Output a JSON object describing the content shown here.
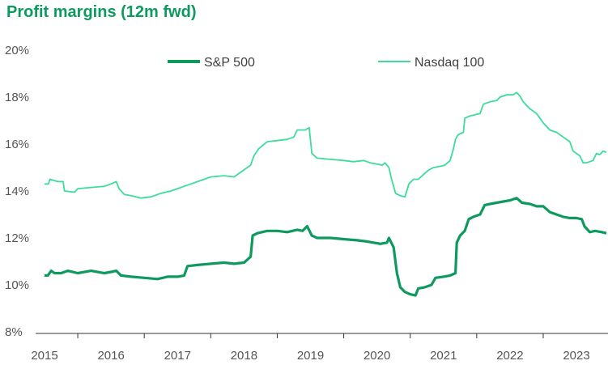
{
  "chart_data": {
    "type": "line",
    "title": "Profit margins (12m fwd)",
    "xlabel": "",
    "ylabel": "",
    "xlim": [
      2015.0,
      2023.45
    ],
    "ylim": [
      8,
      20
    ],
    "y_ticks": [
      8,
      10,
      12,
      14,
      16,
      18,
      20
    ],
    "y_tick_labels": [
      "8%",
      "10%",
      "12%",
      "14%",
      "16%",
      "18%",
      "20%"
    ],
    "x_ticks": [
      2015,
      2016,
      2017,
      2018,
      2019,
      2020,
      2021,
      2022,
      2023
    ],
    "x_tick_labels": [
      "2015",
      "2016",
      "2017",
      "2018",
      "2019",
      "2020",
      "2021",
      "2022",
      "2023"
    ],
    "grid": false,
    "legend_position": "top-center",
    "series": [
      {
        "name": "S&P 500",
        "color": "#0e9a5e",
        "points": [
          [
            2015.0,
            10.4
          ],
          [
            2015.05,
            10.4
          ],
          [
            2015.1,
            10.6
          ],
          [
            2015.15,
            10.5
          ],
          [
            2015.25,
            10.5
          ],
          [
            2015.35,
            10.6
          ],
          [
            2015.5,
            10.5
          ],
          [
            2015.7,
            10.6
          ],
          [
            2015.9,
            10.5
          ],
          [
            2016.0,
            10.55
          ],
          [
            2016.08,
            10.6
          ],
          [
            2016.15,
            10.4
          ],
          [
            2016.3,
            10.35
          ],
          [
            2016.5,
            10.3
          ],
          [
            2016.7,
            10.25
          ],
          [
            2016.85,
            10.35
          ],
          [
            2017.0,
            10.35
          ],
          [
            2017.1,
            10.4
          ],
          [
            2017.15,
            10.8
          ],
          [
            2017.3,
            10.85
          ],
          [
            2017.5,
            10.9
          ],
          [
            2017.7,
            10.95
          ],
          [
            2017.85,
            10.9
          ],
          [
            2018.0,
            10.95
          ],
          [
            2018.1,
            11.2
          ],
          [
            2018.13,
            12.1
          ],
          [
            2018.2,
            12.2
          ],
          [
            2018.35,
            12.3
          ],
          [
            2018.5,
            12.3
          ],
          [
            2018.65,
            12.25
          ],
          [
            2018.8,
            12.35
          ],
          [
            2018.88,
            12.3
          ],
          [
            2018.95,
            12.5
          ],
          [
            2019.02,
            12.1
          ],
          [
            2019.1,
            12.0
          ],
          [
            2019.3,
            12.0
          ],
          [
            2019.5,
            11.95
          ],
          [
            2019.7,
            11.9
          ],
          [
            2019.85,
            11.85
          ],
          [
            2019.95,
            11.8
          ],
          [
            2020.05,
            11.75
          ],
          [
            2020.15,
            11.8
          ],
          [
            2020.18,
            12.0
          ],
          [
            2020.25,
            11.6
          ],
          [
            2020.3,
            10.5
          ],
          [
            2020.35,
            9.9
          ],
          [
            2020.42,
            9.7
          ],
          [
            2020.5,
            9.6
          ],
          [
            2020.58,
            9.55
          ],
          [
            2020.62,
            9.85
          ],
          [
            2020.72,
            9.9
          ],
          [
            2020.82,
            10.0
          ],
          [
            2020.88,
            10.3
          ],
          [
            2021.0,
            10.35
          ],
          [
            2021.1,
            10.4
          ],
          [
            2021.18,
            10.5
          ],
          [
            2021.2,
            11.8
          ],
          [
            2021.25,
            12.1
          ],
          [
            2021.32,
            12.3
          ],
          [
            2021.38,
            12.8
          ],
          [
            2021.45,
            12.9
          ],
          [
            2021.55,
            13.0
          ],
          [
            2021.62,
            13.4
          ],
          [
            2021.7,
            13.45
          ],
          [
            2021.8,
            13.5
          ],
          [
            2021.9,
            13.55
          ],
          [
            2022.0,
            13.6
          ],
          [
            2022.1,
            13.7
          ],
          [
            2022.18,
            13.5
          ],
          [
            2022.3,
            13.45
          ],
          [
            2022.4,
            13.35
          ],
          [
            2022.5,
            13.35
          ],
          [
            2022.6,
            13.1
          ],
          [
            2022.7,
            13.0
          ],
          [
            2022.8,
            12.9
          ],
          [
            2022.9,
            12.85
          ],
          [
            2023.0,
            12.85
          ],
          [
            2023.08,
            12.8
          ],
          [
            2023.12,
            12.5
          ],
          [
            2023.2,
            12.25
          ],
          [
            2023.28,
            12.3
          ],
          [
            2023.38,
            12.25
          ],
          [
            2023.45,
            12.2
          ]
        ]
      },
      {
        "name": "Nasdaq 100",
        "color": "#3ddc9c",
        "points": [
          [
            2015.0,
            14.3
          ],
          [
            2015.06,
            14.3
          ],
          [
            2015.08,
            14.5
          ],
          [
            2015.2,
            14.4
          ],
          [
            2015.28,
            14.4
          ],
          [
            2015.3,
            14.0
          ],
          [
            2015.45,
            13.95
          ],
          [
            2015.5,
            14.1
          ],
          [
            2015.7,
            14.15
          ],
          [
            2015.9,
            14.2
          ],
          [
            2016.0,
            14.3
          ],
          [
            2016.08,
            14.4
          ],
          [
            2016.12,
            14.1
          ],
          [
            2016.2,
            13.85
          ],
          [
            2016.3,
            13.8
          ],
          [
            2016.45,
            13.7
          ],
          [
            2016.6,
            13.75
          ],
          [
            2016.75,
            13.9
          ],
          [
            2016.9,
            14.0
          ],
          [
            2017.0,
            14.1
          ],
          [
            2017.1,
            14.2
          ],
          [
            2017.2,
            14.3
          ],
          [
            2017.35,
            14.45
          ],
          [
            2017.5,
            14.6
          ],
          [
            2017.7,
            14.65
          ],
          [
            2017.85,
            14.6
          ],
          [
            2018.0,
            14.9
          ],
          [
            2018.1,
            15.1
          ],
          [
            2018.15,
            15.5
          ],
          [
            2018.22,
            15.8
          ],
          [
            2018.35,
            16.1
          ],
          [
            2018.5,
            16.15
          ],
          [
            2018.65,
            16.2
          ],
          [
            2018.75,
            16.3
          ],
          [
            2018.8,
            16.6
          ],
          [
            2018.92,
            16.6
          ],
          [
            2018.98,
            16.7
          ],
          [
            2019.02,
            15.6
          ],
          [
            2019.1,
            15.4
          ],
          [
            2019.3,
            15.35
          ],
          [
            2019.5,
            15.3
          ],
          [
            2019.65,
            15.25
          ],
          [
            2019.8,
            15.3
          ],
          [
            2019.9,
            15.2
          ],
          [
            2020.0,
            15.15
          ],
          [
            2020.08,
            15.1
          ],
          [
            2020.12,
            15.2
          ],
          [
            2020.18,
            15.0
          ],
          [
            2020.22,
            14.5
          ],
          [
            2020.28,
            13.9
          ],
          [
            2020.35,
            13.8
          ],
          [
            2020.42,
            13.75
          ],
          [
            2020.48,
            14.3
          ],
          [
            2020.55,
            14.5
          ],
          [
            2020.62,
            14.5
          ],
          [
            2020.7,
            14.7
          ],
          [
            2020.78,
            14.9
          ],
          [
            2020.85,
            15.0
          ],
          [
            2020.95,
            15.05
          ],
          [
            2021.02,
            15.1
          ],
          [
            2021.1,
            15.3
          ],
          [
            2021.15,
            15.8
          ],
          [
            2021.18,
            16.2
          ],
          [
            2021.22,
            16.4
          ],
          [
            2021.3,
            16.5
          ],
          [
            2021.32,
            17.1
          ],
          [
            2021.4,
            17.2
          ],
          [
            2021.55,
            17.3
          ],
          [
            2021.6,
            17.7
          ],
          [
            2021.7,
            17.8
          ],
          [
            2021.8,
            17.85
          ],
          [
            2021.85,
            18.0
          ],
          [
            2021.95,
            18.1
          ],
          [
            2022.05,
            18.1
          ],
          [
            2022.1,
            18.2
          ],
          [
            2022.15,
            18.05
          ],
          [
            2022.2,
            17.8
          ],
          [
            2022.3,
            17.5
          ],
          [
            2022.4,
            17.3
          ],
          [
            2022.5,
            16.9
          ],
          [
            2022.6,
            16.6
          ],
          [
            2022.7,
            16.5
          ],
          [
            2022.8,
            16.3
          ],
          [
            2022.9,
            16.1
          ],
          [
            2022.95,
            15.7
          ],
          [
            2023.05,
            15.5
          ],
          [
            2023.1,
            15.2
          ],
          [
            2023.15,
            15.2
          ],
          [
            2023.25,
            15.3
          ],
          [
            2023.3,
            15.6
          ],
          [
            2023.35,
            15.55
          ],
          [
            2023.4,
            15.7
          ],
          [
            2023.45,
            15.65
          ]
        ]
      }
    ]
  }
}
